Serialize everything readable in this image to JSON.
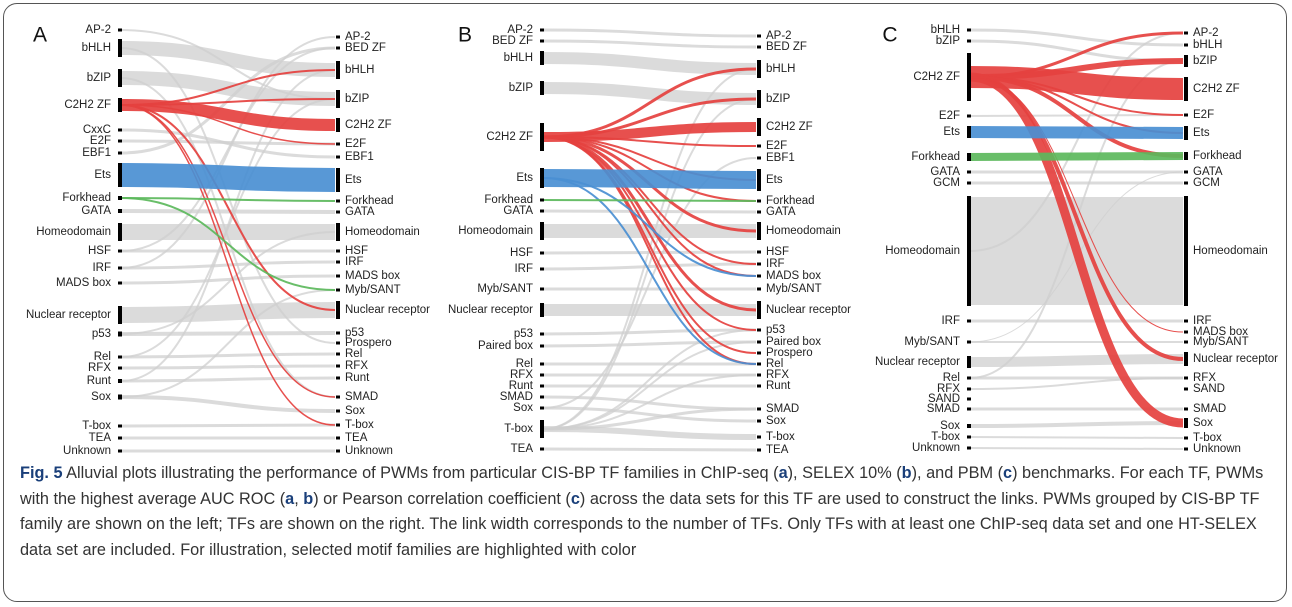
{
  "panels": [
    {
      "label": "A",
      "left": [
        "AP-2",
        "bHLH",
        "bZIP",
        "C2H2 ZF",
        "CxxC",
        "E2F",
        "EBF1",
        "Ets",
        "Forkhead",
        "GATA",
        "Homeodomain",
        "HSF",
        "IRF",
        "MADS box",
        "Nuclear receptor",
        "p53",
        "Rel",
        "RFX",
        "Runt",
        "Sox",
        "T-box",
        "TEA",
        "Unknown"
      ],
      "right": [
        "AP-2",
        "BED ZF",
        "bHLH",
        "bZIP",
        "C2H2 ZF",
        "E2F",
        "EBF1",
        "Ets",
        "Forkhead",
        "GATA",
        "Homeodomain",
        "HSF",
        "IRF",
        "MADS box",
        "Myb/SANT",
        "Nuclear receptor",
        "p53",
        "Prospero",
        "Rel",
        "RFX",
        "Runt",
        "SMAD",
        "Sox",
        "T-box",
        "TEA",
        "Unknown"
      ]
    },
    {
      "label": "B",
      "left": [
        "AP-2",
        "BED ZF",
        "bHLH",
        "bZIP",
        "C2H2 ZF",
        "Ets",
        "Forkhead",
        "GATA",
        "Homeodomain",
        "HSF",
        "IRF",
        "Myb/SANT",
        "Nuclear receptor",
        "p53",
        "Paired box",
        "Rel",
        "RFX",
        "Runt",
        "SMAD",
        "Sox",
        "T-box",
        "TEA"
      ],
      "right": [
        "AP-2",
        "BED ZF",
        "bHLH",
        "bZIP",
        "C2H2 ZF",
        "E2F",
        "EBF1",
        "Ets",
        "Forkhead",
        "GATA",
        "Homeodomain",
        "HSF",
        "IRF",
        "MADS box",
        "Myb/SANT",
        "Nuclear receptor",
        "p53",
        "Paired box",
        "Prospero",
        "Rel",
        "RFX",
        "Runt",
        "SMAD",
        "Sox",
        "T-box",
        "TEA"
      ]
    },
    {
      "label": "C",
      "left": [
        "bHLH",
        "bZIP",
        "C2H2 ZF",
        "E2F",
        "Ets",
        "Forkhead",
        "GATA",
        "GCM",
        "Homeodomain",
        "IRF",
        "Myb/SANT",
        "Nuclear receptor",
        "Rel",
        "RFX",
        "SAND",
        "SMAD",
        "Sox",
        "T-box",
        "Unknown"
      ],
      "right": [
        "AP-2",
        "bHLH",
        "bZIP",
        "C2H2 ZF",
        "E2F",
        "Ets",
        "Forkhead",
        "GATA",
        "GCM",
        "Homeodomain",
        "IRF",
        "MADS box",
        "Myb/SANT",
        "Nuclear receptor",
        "RFX",
        "SAND",
        "SMAD",
        "Sox",
        "T-box",
        "Unknown"
      ]
    }
  ],
  "caption": {
    "figure": "Fig. 5",
    "parts": [
      " Alluvial plots illustrating the performance of PWMs from particular CIS-BP TF families in ChIP-seq (",
      "a",
      "), SELEX 10% (",
      "b",
      "), and PBM (",
      "c",
      ") benchmarks. For each TF, PWMs with the highest average AUC ROC (",
      "a",
      ", ",
      "b",
      ") or Pearson correlation coefficient (",
      "c",
      ") across the data sets for this TF are used to construct the links. PWMs grouped by CIS-BP TF family are shown on the left; TFs are shown on the right. The link width corresponds to the number of TFs. Only TFs with at least one ChIP-seq data set and one HT-SELEX data set are included. For illustration, selected motif families are highlighted with color"
    ]
  }
}
